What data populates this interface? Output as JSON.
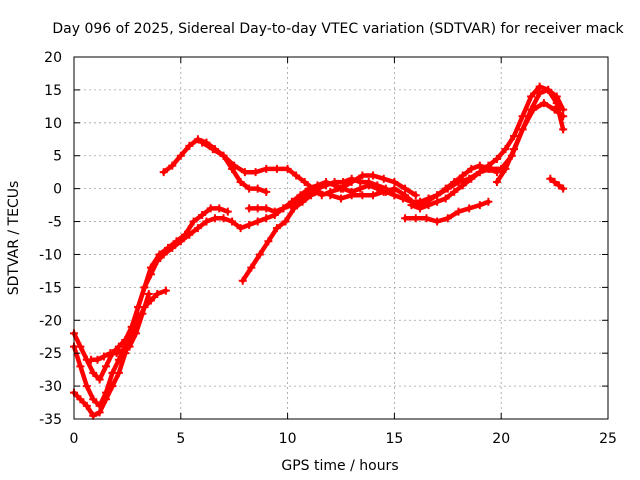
{
  "chart_data": {
    "type": "scatter",
    "title": "Day 096 of 2025, Sidereal Day-to-day VTEC variation (SDTVAR) for receiver mack",
    "xlabel": "GPS time / hours",
    "ylabel": "SDTVAR / TECUs",
    "xlim": [
      0,
      25
    ],
    "ylim": [
      -35,
      20
    ],
    "x_ticks": [
      0,
      5,
      10,
      15,
      20,
      25
    ],
    "y_ticks": [
      -35,
      -30,
      -25,
      -20,
      -15,
      -10,
      -5,
      0,
      5,
      10,
      15,
      20
    ],
    "grid": true,
    "legend": "none",
    "series_color": "#ff0000",
    "series": [
      {
        "name": "track-1",
        "x": [
          0.0,
          0.3,
          0.6,
          0.9,
          1.2,
          1.5,
          1.8,
          2.1,
          2.4,
          2.7,
          3.0,
          3.3,
          3.6,
          3.9,
          4.2,
          4.6,
          5.0,
          5.4,
          5.8,
          6.2,
          6.6,
          7.0,
          7.4,
          7.8,
          8.2,
          8.6,
          9.0,
          9.4,
          9.8,
          10.2,
          10.6,
          11.0,
          11.4,
          11.8,
          12.2,
          12.6,
          13.0,
          13.4,
          13.8,
          14.2,
          14.6,
          15.0
        ],
        "y": [
          -24,
          -27,
          -30,
          -32,
          -33,
          -31,
          -28,
          -26,
          -24,
          -22,
          -18,
          -15,
          -13,
          -11,
          -10,
          -9,
          -8,
          -7,
          -6,
          -5,
          -4.5,
          -4.5,
          -5,
          -6,
          -5.5,
          -5,
          -4.5,
          -4,
          -3,
          -2,
          -1,
          0,
          0.5,
          1,
          0.5,
          0,
          -0.5,
          0,
          0.5,
          0,
          -0.5,
          -1
        ]
      },
      {
        "name": "track-2",
        "x": [
          0.0,
          0.3,
          0.6,
          0.9,
          1.2,
          1.5,
          1.8,
          2.1,
          2.4,
          2.7,
          3.0,
          3.3,
          3.6,
          3.9,
          4.3
        ],
        "y": [
          -31,
          -32,
          -33,
          -34.5,
          -34,
          -32,
          -30,
          -28,
          -25,
          -22,
          -20,
          -18,
          -17,
          -16,
          -15.5
        ]
      },
      {
        "name": "track-3",
        "x": [
          0.0,
          0.3,
          0.6,
          0.9,
          1.2,
          1.5,
          1.8,
          2.1,
          2.4,
          2.7,
          3.0,
          3.3,
          3.6,
          4.0,
          4.4,
          4.8,
          5.2,
          5.6,
          6.0,
          6.4,
          6.8,
          7.2
        ],
        "y": [
          -22,
          -24,
          -26,
          -28,
          -29,
          -27,
          -25,
          -24,
          -23,
          -21,
          -18,
          -15,
          -12,
          -10,
          -9,
          -8,
          -7,
          -5,
          -4,
          -3,
          -3,
          -3.5
        ]
      },
      {
        "name": "track-4",
        "x": [
          0.8,
          1.1,
          1.4,
          1.7,
          2.0,
          2.3,
          2.6,
          2.9,
          3.2,
          3.5
        ],
        "y": [
          -26,
          -26,
          -25.5,
          -25,
          -25,
          -24.5,
          -24,
          -22,
          -19,
          -16
        ]
      },
      {
        "name": "track-5",
        "x": [
          4.2,
          4.6,
          5.0,
          5.4,
          5.8,
          6.2,
          6.6,
          7.0,
          7.4,
          7.8,
          8.2,
          8.6,
          9.0
        ],
        "y": [
          2.5,
          3.5,
          5,
          6.5,
          7.5,
          7,
          6,
          5,
          3,
          1,
          0,
          0,
          -0.5
        ]
      },
      {
        "name": "track-6",
        "x": [
          6.0,
          6.5,
          7.0,
          7.5,
          8.0,
          8.5,
          9.0,
          9.5,
          10.0,
          10.4,
          10.8,
          11.2,
          11.6,
          12.0,
          12.5,
          13.0,
          13.5,
          14.0,
          14.5,
          15.0,
          15.5,
          16.0
        ],
        "y": [
          7,
          6,
          5,
          3.5,
          2.5,
          2.5,
          3,
          3,
          3,
          2,
          1,
          0,
          -1,
          -0.5,
          0,
          1,
          2,
          2,
          1.5,
          1,
          0,
          -1
        ]
      },
      {
        "name": "track-7",
        "x": [
          7.9,
          8.3,
          8.7,
          9.1,
          9.5,
          9.9,
          10.3,
          10.7,
          11.1,
          11.5
        ],
        "y": [
          -14,
          -12,
          -10,
          -8,
          -6,
          -5,
          -3,
          -2,
          -1,
          -0.5
        ]
      },
      {
        "name": "track-8",
        "x": [
          8.2,
          8.6,
          9.0,
          9.4,
          9.8,
          10.2,
          10.6,
          11.0,
          11.4,
          11.8,
          12.2,
          12.6,
          13.0,
          13.4,
          13.8,
          14.2,
          14.6,
          15.0,
          15.4,
          15.8,
          16.2,
          16.6,
          17.0,
          17.4,
          17.8,
          18.2,
          18.6,
          19.0,
          19.4,
          19.8
        ],
        "y": [
          -3,
          -3,
          -3,
          -3.5,
          -3,
          -2.5,
          -1.5,
          -0.5,
          0,
          0.5,
          1,
          1,
          1.5,
          1,
          1,
          0.5,
          0,
          -1,
          -1.5,
          -2,
          -2,
          -1.5,
          -1,
          0,
          1,
          2,
          3,
          3.5,
          3,
          2.5
        ]
      },
      {
        "name": "track-9",
        "x": [
          12.0,
          12.5,
          13.0,
          13.5,
          14.0,
          14.5,
          15.0,
          15.5,
          16.0,
          16.5,
          17.0,
          17.5,
          18.0,
          18.5,
          19.0,
          19.5,
          20.0,
          20.5,
          21.0,
          21.5,
          22.0,
          22.5,
          22.9
        ],
        "y": [
          -1,
          -1.5,
          -1,
          -1,
          -1,
          -0.5,
          0,
          -1,
          -2.5,
          -2,
          -1,
          0,
          1,
          1.5,
          2.5,
          3,
          3,
          5,
          9,
          12,
          13,
          12,
          11
        ]
      },
      {
        "name": "track-10",
        "x": [
          15.5,
          16.0,
          16.5,
          17.0,
          17.5,
          18.0,
          18.5,
          19.0,
          19.4
        ],
        "y": [
          -4.5,
          -4.5,
          -4.5,
          -5,
          -4.5,
          -3.5,
          -3,
          -2.5,
          -2
        ]
      },
      {
        "name": "track-11",
        "x": [
          15.8,
          16.2,
          16.6,
          17.0,
          17.4,
          17.8,
          18.2,
          18.6,
          19.0,
          19.4,
          19.8,
          20.2,
          20.6,
          21.0,
          21.4,
          21.8,
          22.2,
          22.6,
          22.9
        ],
        "y": [
          -2.5,
          -3,
          -2.5,
          -2,
          -1.5,
          -0.5,
          0.5,
          1.5,
          2.5,
          3.5,
          4.5,
          6,
          8,
          11,
          14,
          15.5,
          15,
          13,
          9
        ]
      },
      {
        "name": "track-12",
        "x": [
          19.8,
          20.2,
          20.6,
          21.0,
          21.4,
          21.8,
          22.2,
          22.6,
          22.9
        ],
        "y": [
          1,
          3,
          6,
          9,
          12,
          14.5,
          15,
          14,
          12
        ]
      },
      {
        "name": "track-13",
        "x": [
          22.3,
          22.5,
          22.7,
          22.9
        ],
        "y": [
          1.5,
          1.0,
          0.5,
          0.0
        ]
      }
    ]
  }
}
